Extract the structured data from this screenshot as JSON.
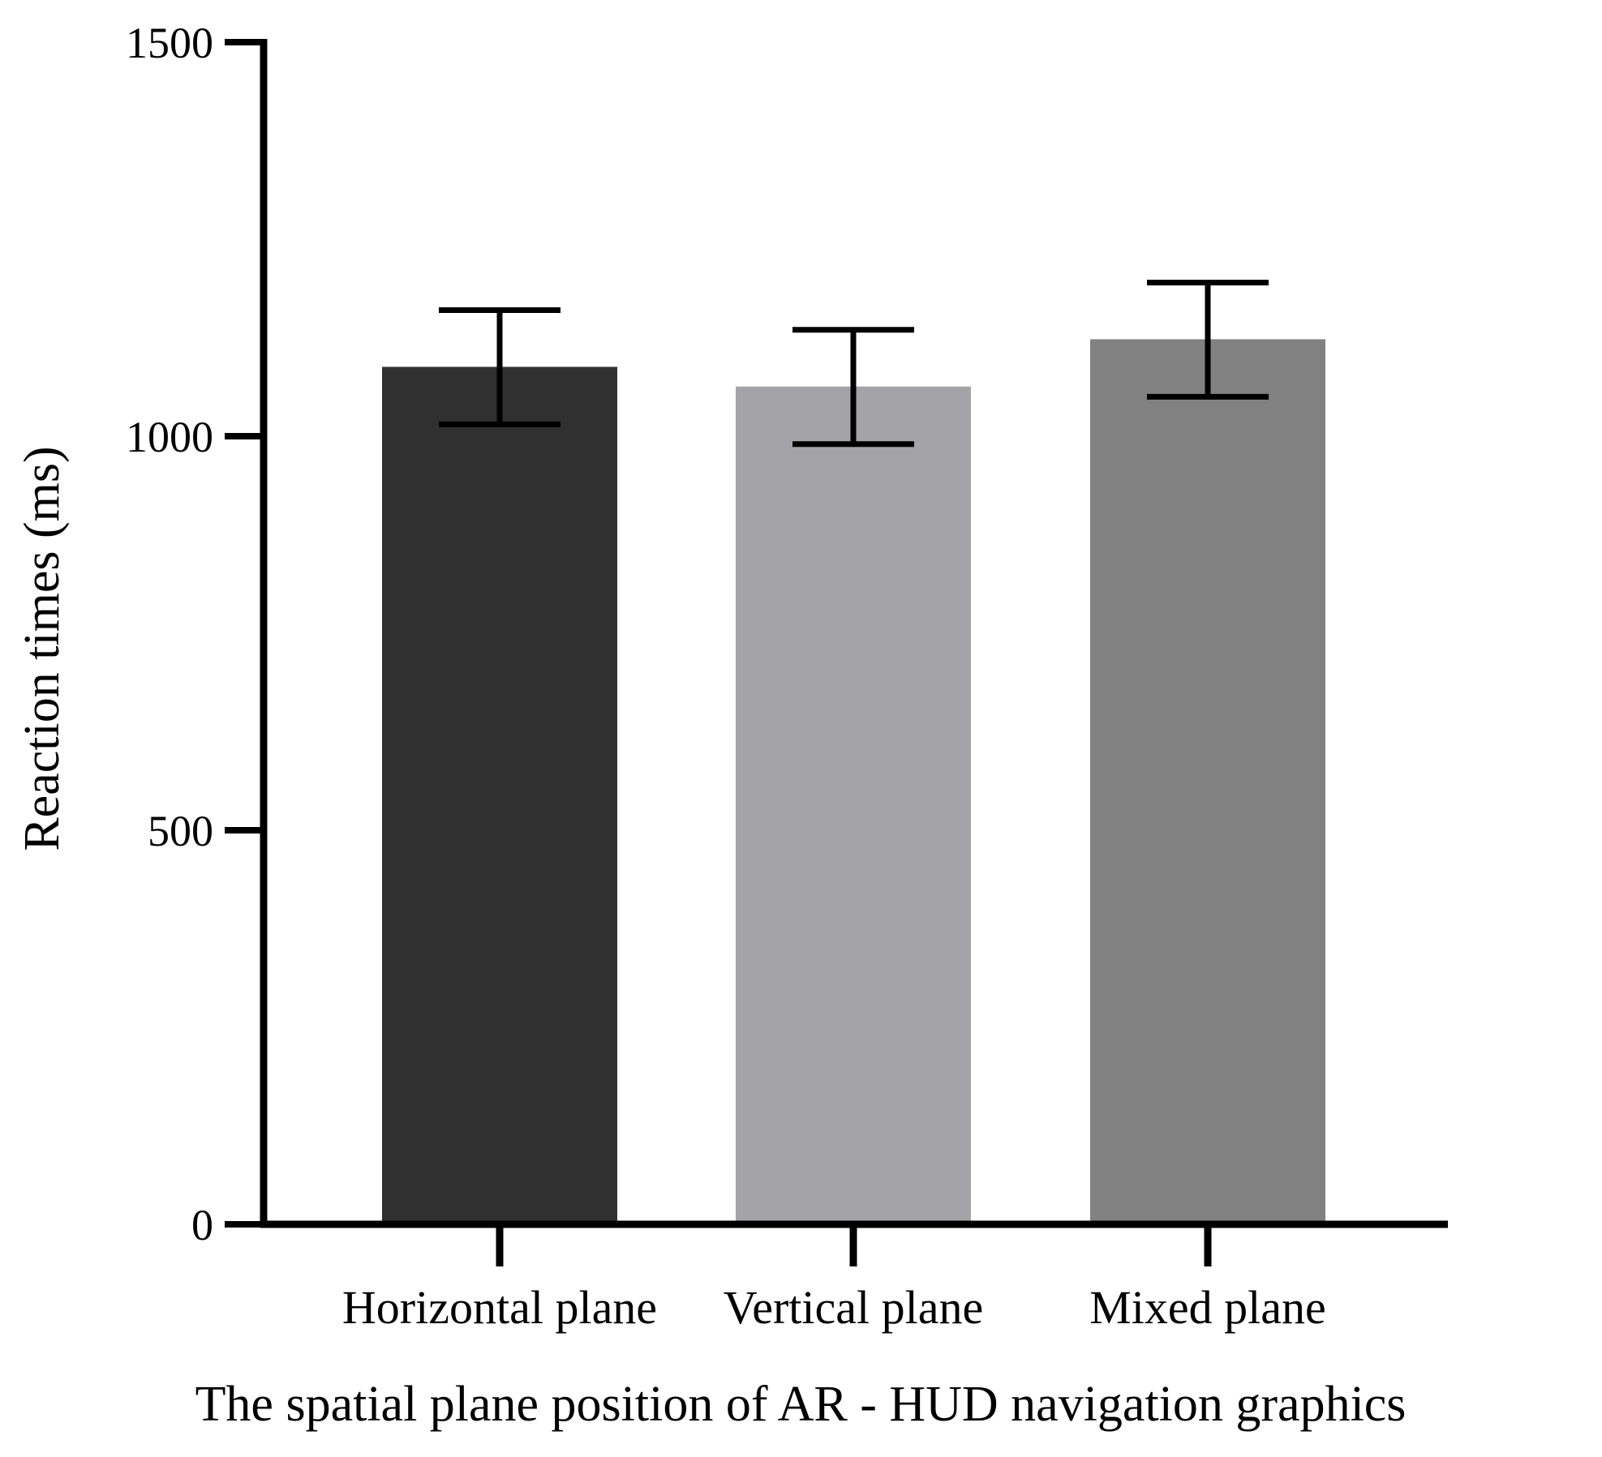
{
  "chart_data": {
    "type": "bar",
    "title": "",
    "xlabel": "The spatial plane position of AR - HUD navigation graphics",
    "ylabel": "Reaction times (ms)",
    "ylim": [
      0,
      1500
    ],
    "yticks": [
      0,
      500,
      1000,
      1500
    ],
    "categories": [
      "Horizontal plane",
      "Vertical plane",
      "Mixed plane"
    ],
    "values": [
      1088,
      1063,
      1123
    ],
    "error_lower": [
      1015,
      990,
      1050
    ],
    "error_upper": [
      1160,
      1135,
      1195
    ],
    "colors": [
      "#303030",
      "#a3a3a8",
      "#818181"
    ],
    "grid": false,
    "legend": "none"
  }
}
